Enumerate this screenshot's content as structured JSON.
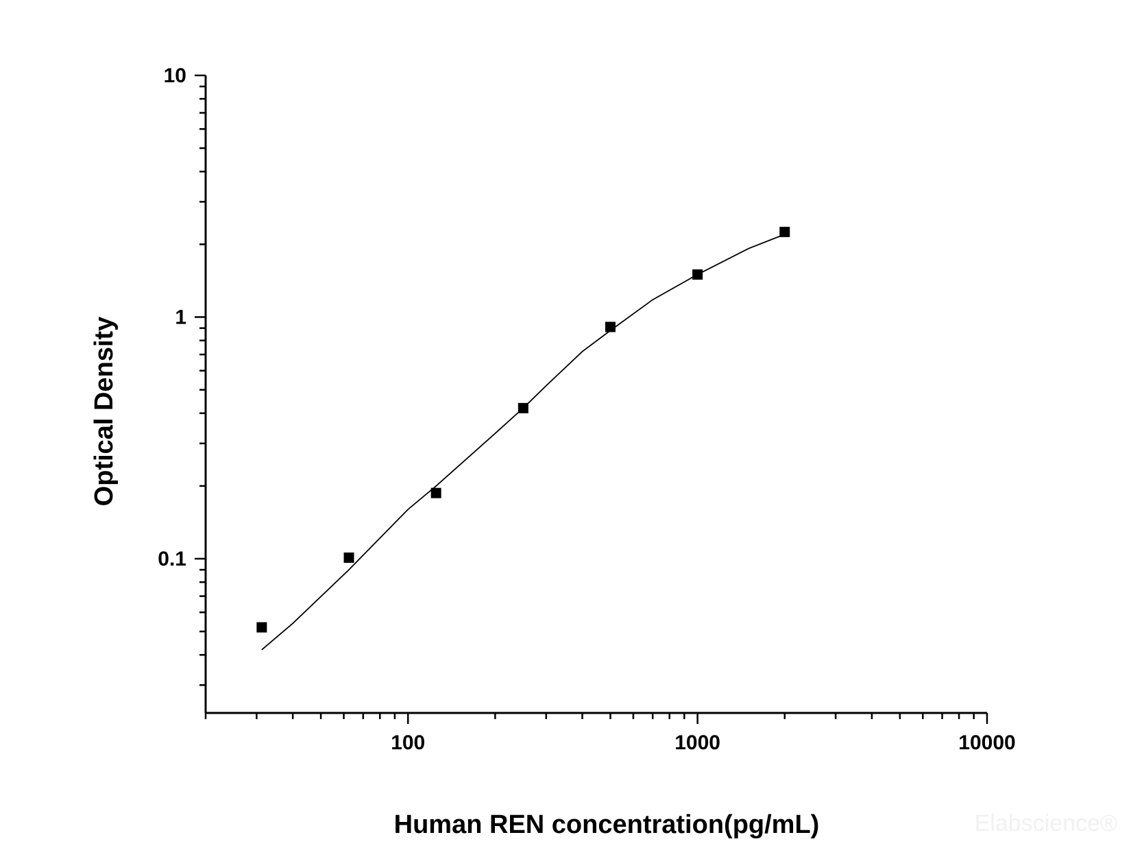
{
  "chart_data": {
    "type": "scatter",
    "xlabel": "Human REN concentration(pg/mL)",
    "ylabel": "Optical Density",
    "x_scale": "log",
    "y_scale": "log",
    "xlim": [
      20,
      10000
    ],
    "ylim": [
      0.023,
      10
    ],
    "x_ticks": [
      {
        "value": 100,
        "label": "100"
      },
      {
        "value": 1000,
        "label": "1000"
      },
      {
        "value": 10000,
        "label": "10000"
      }
    ],
    "y_ticks": [
      {
        "value": 0.1,
        "label": "0.1"
      },
      {
        "value": 1,
        "label": "1"
      },
      {
        "value": 10,
        "label": "10"
      }
    ],
    "grid": false,
    "series": [
      {
        "marker": "square",
        "color": "#000000",
        "x": [
          31.25,
          62.5,
          125,
          250,
          500,
          1000,
          2000
        ],
        "y": [
          0.052,
          0.101,
          0.187,
          0.42,
          0.91,
          1.5,
          2.25
        ]
      }
    ],
    "fit_curve": {
      "color": "#000000",
      "x": [
        31.25,
        40,
        62.5,
        100,
        125,
        200,
        250,
        300,
        400,
        500,
        700,
        1000,
        1500,
        2000
      ],
      "y": [
        0.042,
        0.054,
        0.09,
        0.16,
        0.2,
        0.33,
        0.42,
        0.52,
        0.72,
        0.88,
        1.18,
        1.5,
        1.92,
        2.2
      ]
    },
    "watermark": "Elabscience®"
  }
}
